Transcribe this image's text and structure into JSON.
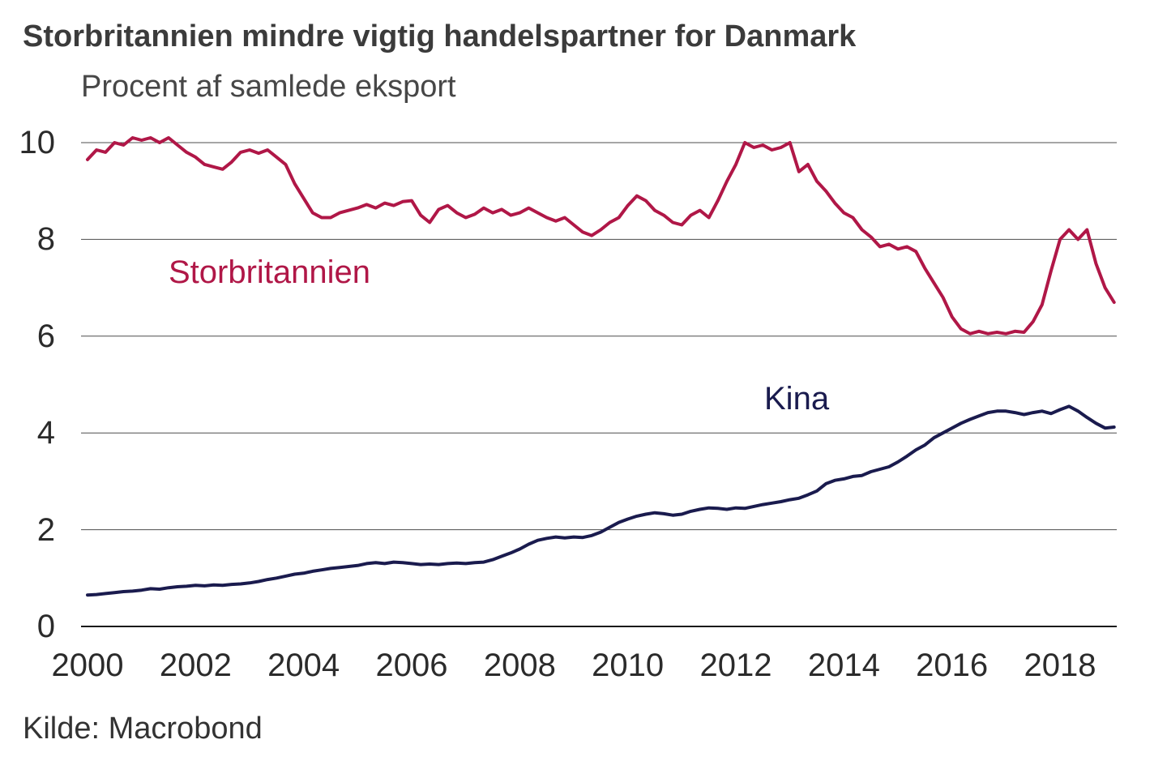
{
  "page": {
    "title": "Storbritannien mindre vigtig handelspartner for Danmark",
    "subtitle": "Procent af samlede eksport",
    "source": "Kilde: Macrobond"
  },
  "chart_data": {
    "type": "line",
    "title": "Storbritannien mindre vigtig handelspartner for Danmark",
    "subtitle": "Procent af samlede eksport",
    "source": "Kilde: Macrobond",
    "ylabel": "Procent af samlede eksport",
    "xlabel": "",
    "grid": "horizontal",
    "legend_position": "inline-labels",
    "x_ticks": [
      2000,
      2002,
      2004,
      2006,
      2008,
      2010,
      2012,
      2014,
      2016,
      2018
    ],
    "y_ticks": [
      0,
      2,
      4,
      6,
      8,
      10
    ],
    "xlim": [
      2000,
      2019.05
    ],
    "ylim": [
      0,
      10
    ],
    "x_start": 2000,
    "x_step": 0.1666667,
    "grid_color": "#4d4d4d",
    "axis_color": "#1a1a1a",
    "series": [
      {
        "name": "Storbritannien",
        "color": "#b01747",
        "values": [
          9.65,
          9.85,
          9.8,
          10.0,
          9.95,
          10.1,
          10.05,
          10.1,
          10.0,
          10.1,
          9.95,
          9.8,
          9.7,
          9.55,
          9.5,
          9.45,
          9.6,
          9.8,
          9.85,
          9.78,
          9.85,
          9.7,
          9.55,
          9.15,
          8.85,
          8.55,
          8.45,
          8.45,
          8.55,
          8.6,
          8.65,
          8.72,
          8.65,
          8.75,
          8.7,
          8.78,
          8.8,
          8.5,
          8.35,
          8.62,
          8.7,
          8.55,
          8.45,
          8.52,
          8.65,
          8.55,
          8.62,
          8.5,
          8.55,
          8.65,
          8.55,
          8.45,
          8.38,
          8.45,
          8.3,
          8.15,
          8.08,
          8.2,
          8.35,
          8.45,
          8.7,
          8.9,
          8.8,
          8.6,
          8.5,
          8.35,
          8.3,
          8.5,
          8.6,
          8.45,
          8.8,
          9.2,
          9.55,
          10.0,
          9.9,
          9.95,
          9.85,
          9.9,
          10.0,
          9.4,
          9.55,
          9.2,
          9.0,
          8.75,
          8.55,
          8.45,
          8.2,
          8.05,
          7.85,
          7.9,
          7.8,
          7.85,
          7.75,
          7.4,
          7.1,
          6.8,
          6.4,
          6.15,
          6.05,
          6.1,
          6.05,
          6.08,
          6.05,
          6.1,
          6.08,
          6.3,
          6.65,
          7.35,
          8.0,
          8.2,
          8.0,
          8.2,
          7.5,
          7.0,
          6.7
        ]
      },
      {
        "name": "Kina",
        "color": "#1a1b4e",
        "values": [
          0.65,
          0.66,
          0.68,
          0.7,
          0.72,
          0.73,
          0.75,
          0.78,
          0.77,
          0.8,
          0.82,
          0.83,
          0.85,
          0.84,
          0.86,
          0.85,
          0.87,
          0.88,
          0.9,
          0.93,
          0.97,
          1.0,
          1.04,
          1.08,
          1.1,
          1.14,
          1.17,
          1.2,
          1.22,
          1.24,
          1.26,
          1.3,
          1.32,
          1.3,
          1.33,
          1.32,
          1.3,
          1.28,
          1.29,
          1.28,
          1.3,
          1.31,
          1.3,
          1.32,
          1.33,
          1.38,
          1.45,
          1.52,
          1.6,
          1.7,
          1.78,
          1.82,
          1.85,
          1.83,
          1.85,
          1.84,
          1.88,
          1.95,
          2.05,
          2.15,
          2.22,
          2.28,
          2.32,
          2.35,
          2.33,
          2.3,
          2.32,
          2.38,
          2.42,
          2.45,
          2.44,
          2.42,
          2.45,
          2.44,
          2.48,
          2.52,
          2.55,
          2.58,
          2.62,
          2.65,
          2.72,
          2.8,
          2.95,
          3.02,
          3.05,
          3.1,
          3.12,
          3.2,
          3.25,
          3.3,
          3.4,
          3.52,
          3.65,
          3.75,
          3.9,
          4.0,
          4.1,
          4.2,
          4.28,
          4.35,
          4.42,
          4.45,
          4.45,
          4.42,
          4.38,
          4.42,
          4.45,
          4.4,
          4.48,
          4.55,
          4.45,
          4.32,
          4.2,
          4.1,
          4.12
        ]
      }
    ]
  }
}
